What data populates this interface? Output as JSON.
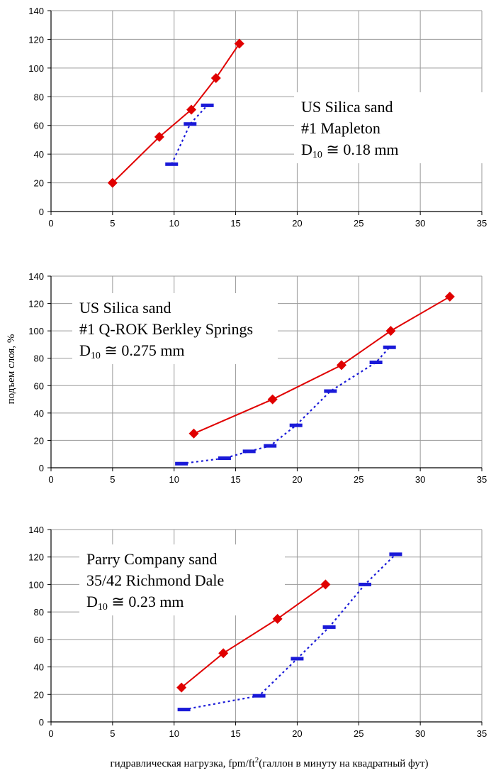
{
  "figure": {
    "ylabel": "подъем слоя, %",
    "xlabel_prefix": "гидравлическая нагрузка, fpm/ft",
    "xlabel_sup": "2",
    "xlabel_suffix": "(галлон в минуту на квадратный фут)"
  },
  "chart_data": [
    {
      "type": "line",
      "annotation": [
        "US Silica sand",
        "#1 Mapleton",
        "D10 ≅ 0.18 mm"
      ],
      "annotation_subscript": {
        "base": "D",
        "sub": "10",
        "rest": " ≅ 0.18 mm"
      },
      "xlim": [
        0,
        35
      ],
      "ylim": [
        0,
        140
      ],
      "xticks": [
        0,
        5,
        10,
        15,
        20,
        25,
        30,
        35
      ],
      "yticks": [
        0,
        20,
        40,
        60,
        80,
        100,
        120,
        140
      ],
      "grid": true,
      "series": [
        {
          "color": "#e00000",
          "linestyle": "solid",
          "marker": "diamond",
          "x": [
            5.0,
            8.8,
            11.4,
            13.4,
            15.3
          ],
          "y": [
            20,
            52,
            71,
            93,
            117
          ]
        },
        {
          "color": "#1a1ad8",
          "linestyle": "dotted",
          "marker": "dash",
          "x": [
            9.8,
            11.3,
            12.7
          ],
          "y": [
            33,
            61,
            74
          ]
        }
      ]
    },
    {
      "type": "line",
      "annotation": [
        "US Silica sand",
        "#1 Q-ROK Berkley Springs",
        "D10 ≅ 0.275 mm"
      ],
      "annotation_subscript": {
        "base": "D",
        "sub": "10",
        "rest": " ≅ 0.275 mm"
      },
      "xlim": [
        0,
        35
      ],
      "ylim": [
        0,
        140
      ],
      "xticks": [
        0,
        5,
        10,
        15,
        20,
        25,
        30,
        35
      ],
      "yticks": [
        0,
        20,
        40,
        60,
        80,
        100,
        120,
        140
      ],
      "grid": true,
      "series": [
        {
          "color": "#e00000",
          "linestyle": "solid",
          "marker": "diamond",
          "x": [
            11.6,
            18.0,
            23.6,
            27.6,
            32.4
          ],
          "y": [
            25,
            50,
            75,
            100,
            125
          ]
        },
        {
          "color": "#1a1ad8",
          "linestyle": "dotted",
          "marker": "dash",
          "x": [
            10.6,
            14.1,
            16.1,
            17.8,
            19.9,
            22.7,
            26.4,
            27.5
          ],
          "y": [
            3,
            7,
            12,
            16,
            31,
            56,
            77,
            88
          ]
        }
      ]
    },
    {
      "type": "line",
      "annotation": [
        "Parry Company sand",
        "35/42 Richmond Dale",
        "D10 ≅ 0.23 mm"
      ],
      "annotation_subscript": {
        "base": "D",
        "sub": "10",
        "rest": " ≅ 0.23 mm"
      },
      "xlim": [
        0,
        35
      ],
      "ylim": [
        0,
        140
      ],
      "xticks": [
        0,
        5,
        10,
        15,
        20,
        25,
        30,
        35
      ],
      "yticks": [
        0,
        20,
        40,
        60,
        80,
        100,
        120,
        140
      ],
      "grid": true,
      "series": [
        {
          "color": "#e00000",
          "linestyle": "solid",
          "marker": "diamond",
          "x": [
            10.6,
            14.0,
            18.4,
            22.3
          ],
          "y": [
            25,
            50,
            75,
            100
          ]
        },
        {
          "color": "#1a1ad8",
          "linestyle": "dotted",
          "marker": "dash",
          "x": [
            10.8,
            16.9,
            20.0,
            22.6,
            25.5,
            28.0
          ],
          "y": [
            9,
            19,
            46,
            69,
            100,
            122
          ]
        }
      ]
    }
  ]
}
